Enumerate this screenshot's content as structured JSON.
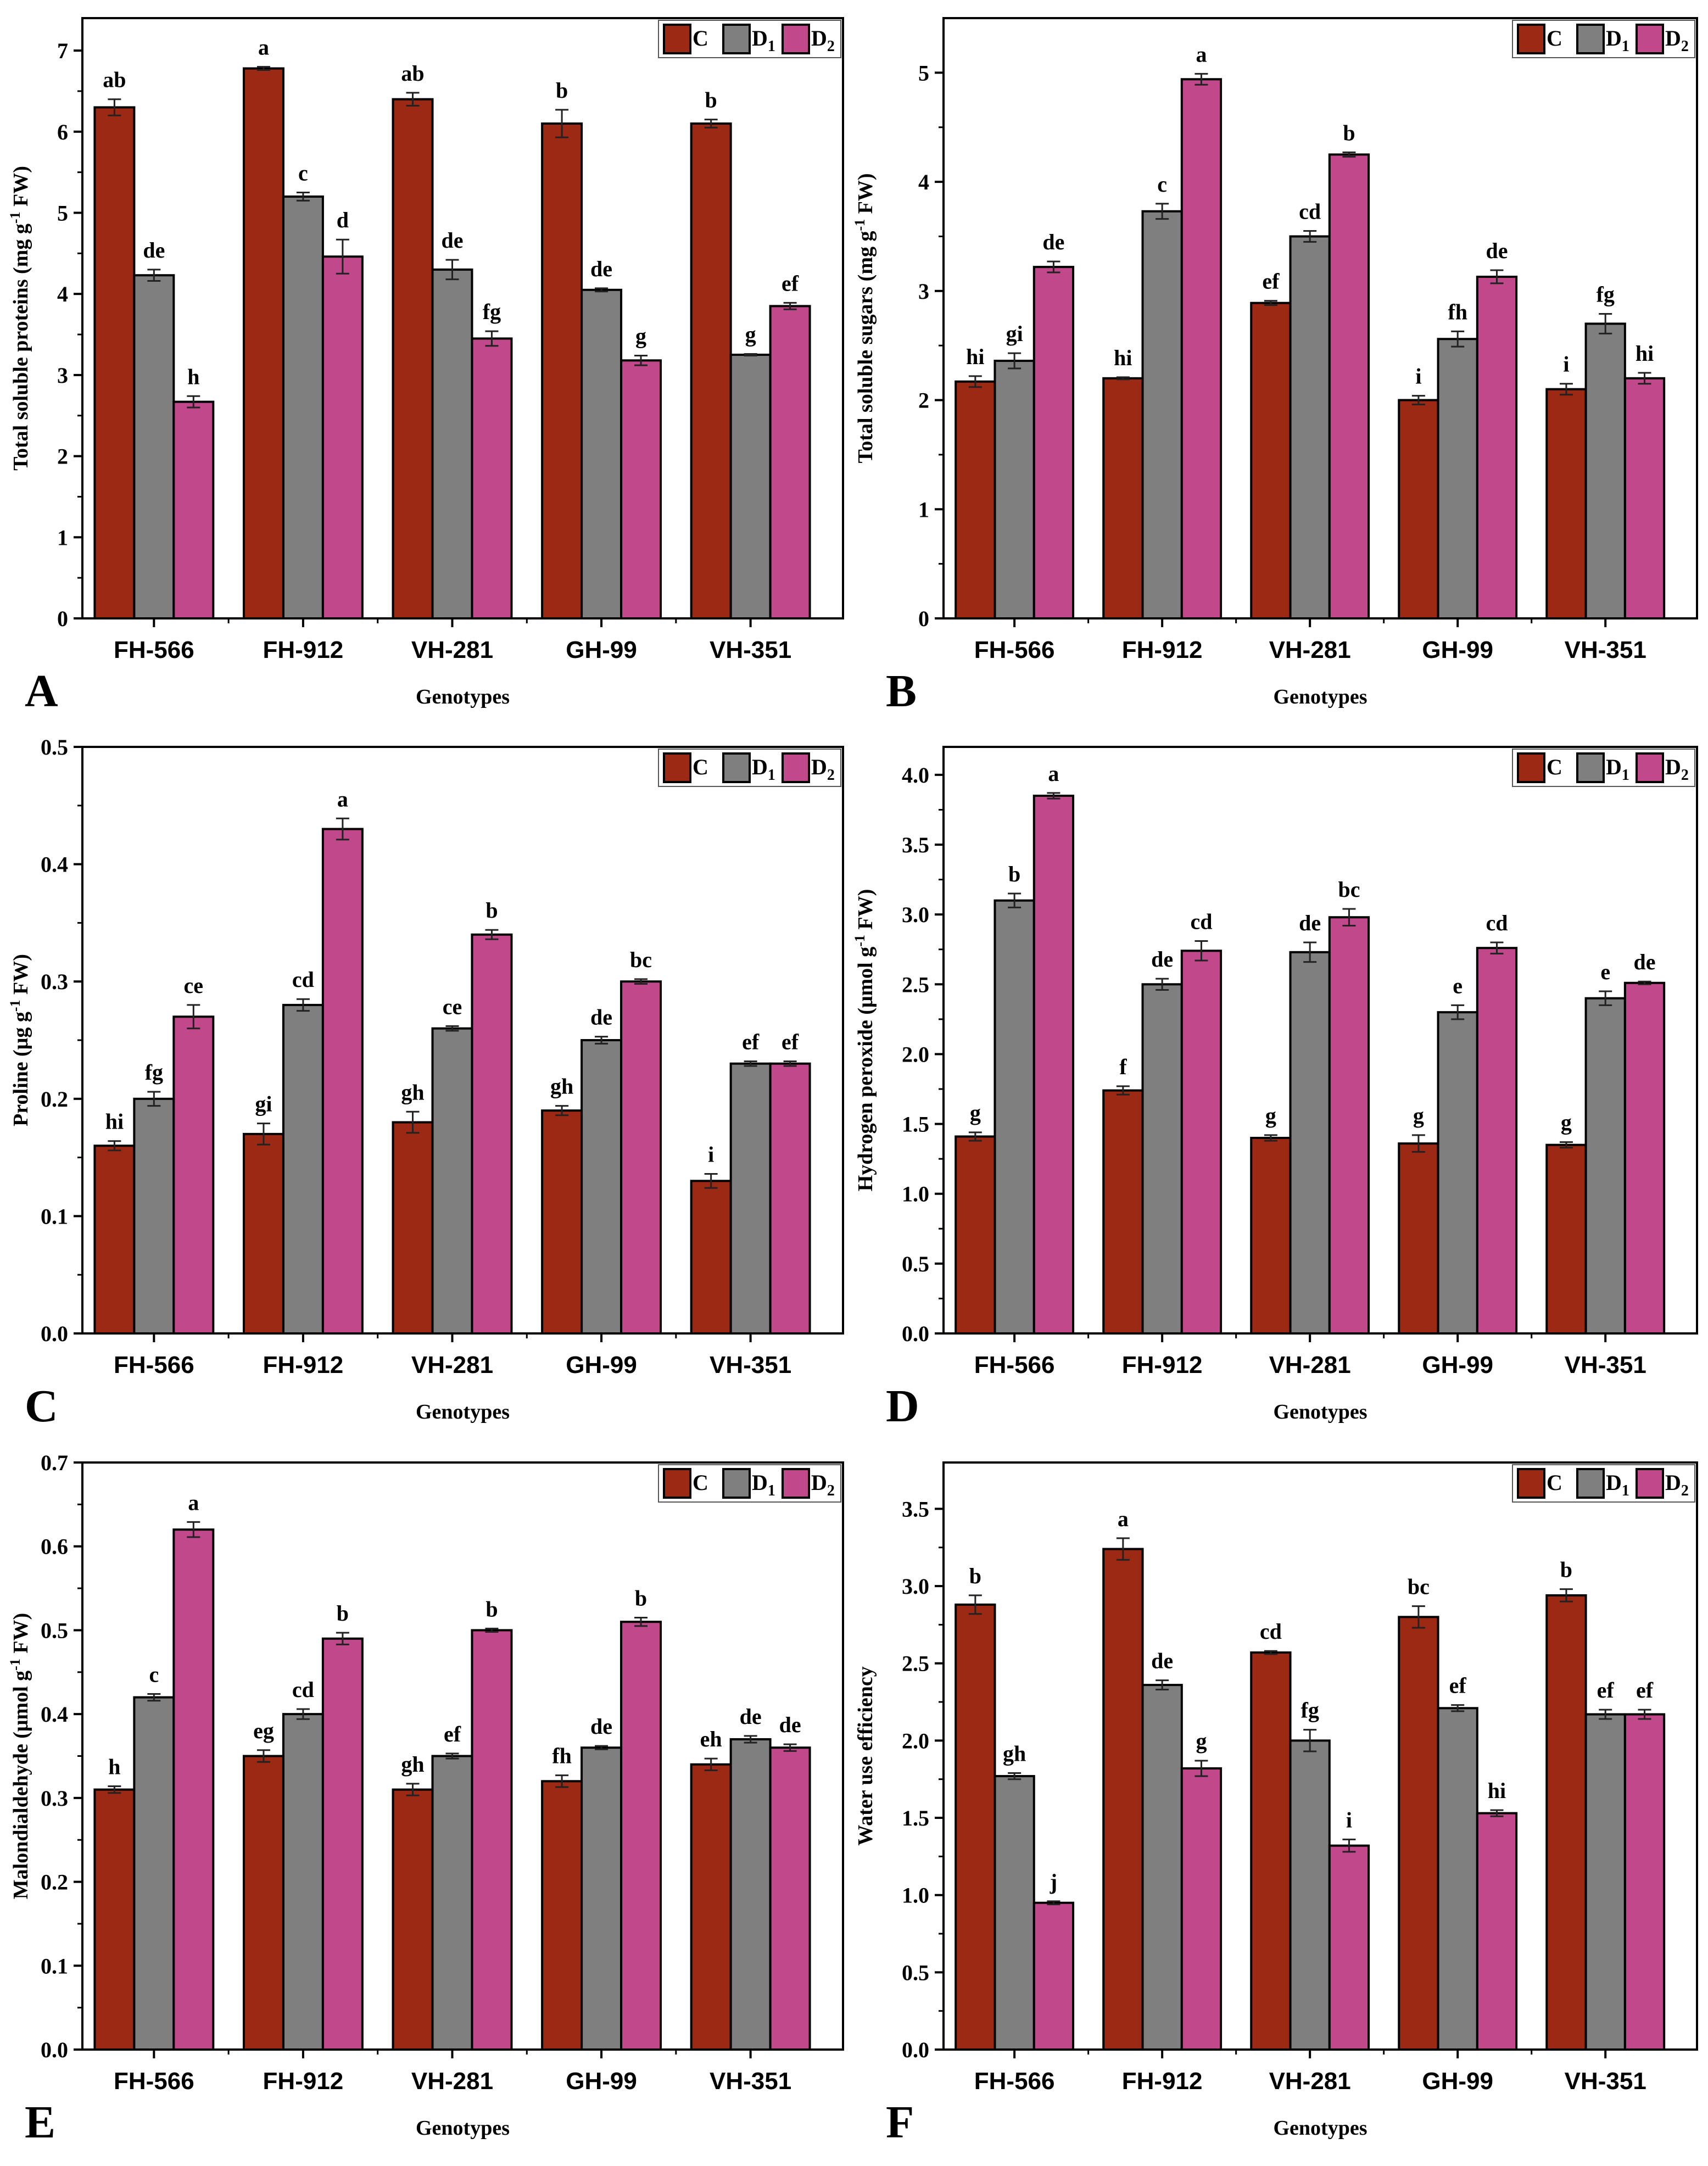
{
  "colors": {
    "C": "#9b2914",
    "D1": "#7f7f7f",
    "D2": "#c0488b"
  },
  "legend": [
    {
      "base": "C",
      "sub": ""
    },
    {
      "base": "D",
      "sub": "1"
    },
    {
      "base": "D",
      "sub": "2"
    }
  ],
  "chart_data": [
    {
      "panel": "A",
      "type": "bar",
      "xlabel": "Genotypes",
      "ylabel": {
        "pre": "Total soluble proteins (mg g",
        "sup": "-1",
        "post": " FW)"
      },
      "categories": [
        "FH-566",
        "FH-912",
        "VH-281",
        "GH-99",
        "VH-351"
      ],
      "ylim": [
        0,
        7.4
      ],
      "yticks": [
        "0",
        "1",
        "2",
        "3",
        "4",
        "5",
        "6",
        "7"
      ],
      "ytick_values": [
        0,
        1,
        2,
        3,
        4,
        5,
        6,
        7
      ],
      "series": [
        {
          "name": "C",
          "values": [
            6.3,
            6.78,
            6.4,
            6.1,
            6.1
          ],
          "errors": [
            0.1,
            0.02,
            0.08,
            0.17,
            0.05
          ],
          "letters": [
            "ab",
            "a",
            "ab",
            "b",
            "b"
          ]
        },
        {
          "name": "D1",
          "values": [
            4.23,
            5.2,
            4.3,
            4.05,
            3.25
          ],
          "errors": [
            0.07,
            0.05,
            0.12,
            0.02,
            0.01
          ],
          "letters": [
            "de",
            "c",
            "de",
            "de",
            "g"
          ]
        },
        {
          "name": "D2",
          "values": [
            2.67,
            4.46,
            3.45,
            3.18,
            3.85
          ],
          "errors": [
            0.07,
            0.21,
            0.09,
            0.06,
            0.04
          ],
          "letters": [
            "h",
            "d",
            "fg",
            "g",
            "ef"
          ]
        }
      ]
    },
    {
      "panel": "B",
      "type": "bar",
      "xlabel": "Genotypes",
      "ylabel": {
        "pre": "Total soluble sugars (mg g",
        "sup": "-1",
        "post": " FW)"
      },
      "categories": [
        "FH-566",
        "FH-912",
        "VH-281",
        "GH-99",
        "VH-351"
      ],
      "ylim": [
        0,
        5.5
      ],
      "yticks": [
        "0",
        "1",
        "2",
        "3",
        "4",
        "5"
      ],
      "ytick_values": [
        0,
        1,
        2,
        3,
        4,
        5
      ],
      "series": [
        {
          "name": "C",
          "values": [
            2.17,
            2.2,
            2.89,
            2.0,
            2.1
          ],
          "errors": [
            0.05,
            0.01,
            0.02,
            0.04,
            0.05
          ],
          "letters": [
            "hi",
            "hi",
            "ef",
            "i",
            "i"
          ]
        },
        {
          "name": "D1",
          "values": [
            2.36,
            3.73,
            3.5,
            2.56,
            2.7
          ],
          "errors": [
            0.07,
            0.07,
            0.05,
            0.07,
            0.09
          ],
          "letters": [
            "gi",
            "c",
            "cd",
            "fh",
            "fg"
          ]
        },
        {
          "name": "D2",
          "values": [
            3.22,
            4.94,
            4.25,
            3.13,
            2.2
          ],
          "errors": [
            0.05,
            0.05,
            0.02,
            0.06,
            0.05
          ],
          "letters": [
            "de",
            "a",
            "b",
            "de",
            "hi"
          ]
        }
      ]
    },
    {
      "panel": "C",
      "type": "bar",
      "xlabel": "Genotypes",
      "ylabel": {
        "pre": "Proline (μg g",
        "sup": "-1",
        "post": " FW)"
      },
      "categories": [
        "FH-566",
        "FH-912",
        "VH-281",
        "GH-99",
        "VH-351"
      ],
      "ylim": [
        0,
        0.5
      ],
      "yticks": [
        "0.0",
        "0.1",
        "0.2",
        "0.3",
        "0.4",
        "0.5"
      ],
      "ytick_values": [
        0,
        0.1,
        0.2,
        0.3,
        0.4,
        0.5
      ],
      "series": [
        {
          "name": "C",
          "values": [
            0.16,
            0.17,
            0.18,
            0.19,
            0.13
          ],
          "errors": [
            0.004,
            0.009,
            0.009,
            0.004,
            0.006
          ],
          "letters": [
            "hi",
            "gi",
            "gh",
            "gh",
            "i"
          ]
        },
        {
          "name": "D1",
          "values": [
            0.2,
            0.28,
            0.26,
            0.25,
            0.23
          ],
          "errors": [
            0.006,
            0.005,
            0.002,
            0.003,
            0.002
          ],
          "letters": [
            "fg",
            "cd",
            "ce",
            "de",
            "ef"
          ]
        },
        {
          "name": "D2",
          "values": [
            0.27,
            0.43,
            0.34,
            0.3,
            0.23
          ],
          "errors": [
            0.01,
            0.009,
            0.004,
            0.002,
            0.002
          ],
          "letters": [
            "ce",
            "a",
            "b",
            "bc",
            "ef"
          ]
        }
      ]
    },
    {
      "panel": "D",
      "type": "bar",
      "xlabel": "Genotypes",
      "ylabel": {
        "pre": "Hydrogen peroxide (μmol g",
        "sup": "-1",
        "post": " FW)"
      },
      "categories": [
        "FH-566",
        "FH-912",
        "VH-281",
        "GH-99",
        "VH-351"
      ],
      "ylim": [
        0,
        4.2
      ],
      "yticks": [
        "0.0",
        "0.5",
        "1.0",
        "1.5",
        "2.0",
        "2.5",
        "3.0",
        "3.5",
        "4.0"
      ],
      "ytick_values": [
        0,
        0.5,
        1,
        1.5,
        2,
        2.5,
        3,
        3.5,
        4
      ],
      "series": [
        {
          "name": "C",
          "values": [
            1.41,
            1.74,
            1.4,
            1.36,
            1.35
          ],
          "errors": [
            0.03,
            0.03,
            0.02,
            0.06,
            0.02
          ],
          "letters": [
            "g",
            "f",
            "g",
            "g",
            "g"
          ]
        },
        {
          "name": "D1",
          "values": [
            3.1,
            2.5,
            2.73,
            2.3,
            2.4
          ],
          "errors": [
            0.05,
            0.04,
            0.07,
            0.05,
            0.05
          ],
          "letters": [
            "b",
            "de",
            "de",
            "e",
            "e"
          ]
        },
        {
          "name": "D2",
          "values": [
            3.85,
            2.74,
            2.98,
            2.76,
            2.51
          ],
          "errors": [
            0.02,
            0.07,
            0.06,
            0.04,
            0.01
          ],
          "letters": [
            "a",
            "cd",
            "bc",
            "cd",
            "de"
          ]
        }
      ]
    },
    {
      "panel": "E",
      "type": "bar",
      "xlabel": "Genotypes",
      "ylabel": {
        "pre": "Malondialdehyde (μmol g",
        "sup": "-1",
        "post": " FW)"
      },
      "categories": [
        "FH-566",
        "FH-912",
        "VH-281",
        "GH-99",
        "VH-351"
      ],
      "ylim": [
        0,
        0.7
      ],
      "yticks": [
        "0.0",
        "0.1",
        "0.2",
        "0.3",
        "0.4",
        "0.5",
        "0.6",
        "0.7"
      ],
      "ytick_values": [
        0,
        0.1,
        0.2,
        0.3,
        0.4,
        0.5,
        0.6,
        0.7
      ],
      "series": [
        {
          "name": "C",
          "values": [
            0.31,
            0.35,
            0.31,
            0.32,
            0.34
          ],
          "errors": [
            0.004,
            0.007,
            0.007,
            0.007,
            0.007
          ],
          "letters": [
            "h",
            "eg",
            "gh",
            "fh",
            "eh"
          ]
        },
        {
          "name": "D1",
          "values": [
            0.42,
            0.4,
            0.35,
            0.36,
            0.37
          ],
          "errors": [
            0.004,
            0.006,
            0.003,
            0.002,
            0.004
          ],
          "letters": [
            "c",
            "cd",
            "ef",
            "de",
            "de"
          ]
        },
        {
          "name": "D2",
          "values": [
            0.62,
            0.49,
            0.5,
            0.51,
            0.36
          ],
          "errors": [
            0.009,
            0.007,
            0.002,
            0.005,
            0.004
          ],
          "letters": [
            "a",
            "b",
            "b",
            "b",
            "de"
          ]
        }
      ]
    },
    {
      "panel": "F",
      "type": "bar",
      "xlabel": "Genotypes",
      "ylabel": {
        "pre": "Water use efficiency",
        "sup": "",
        "post": ""
      },
      "categories": [
        "FH-566",
        "FH-912",
        "VH-281",
        "GH-99",
        "VH-351"
      ],
      "ylim": [
        0,
        3.8
      ],
      "yticks": [
        "0.0",
        "0.5",
        "1.0",
        "1.5",
        "2.0",
        "2.5",
        "3.0",
        "3.5"
      ],
      "ytick_values": [
        0,
        0.5,
        1,
        1.5,
        2,
        2.5,
        3,
        3.5
      ],
      "series": [
        {
          "name": "C",
          "values": [
            2.88,
            3.24,
            2.57,
            2.8,
            2.94
          ],
          "errors": [
            0.06,
            0.07,
            0.01,
            0.07,
            0.04
          ],
          "letters": [
            "b",
            "a",
            "cd",
            "bc",
            "b"
          ]
        },
        {
          "name": "D1",
          "values": [
            1.77,
            2.36,
            2.0,
            2.21,
            2.17
          ],
          "errors": [
            0.02,
            0.03,
            0.07,
            0.02,
            0.03
          ],
          "letters": [
            "gh",
            "de",
            "fg",
            "ef",
            "ef"
          ]
        },
        {
          "name": "D2",
          "values": [
            0.95,
            1.82,
            1.32,
            1.53,
            2.17
          ],
          "errors": [
            0.01,
            0.05,
            0.04,
            0.02,
            0.03
          ],
          "letters": [
            "j",
            "g",
            "i",
            "hi",
            "ef"
          ]
        }
      ]
    }
  ]
}
